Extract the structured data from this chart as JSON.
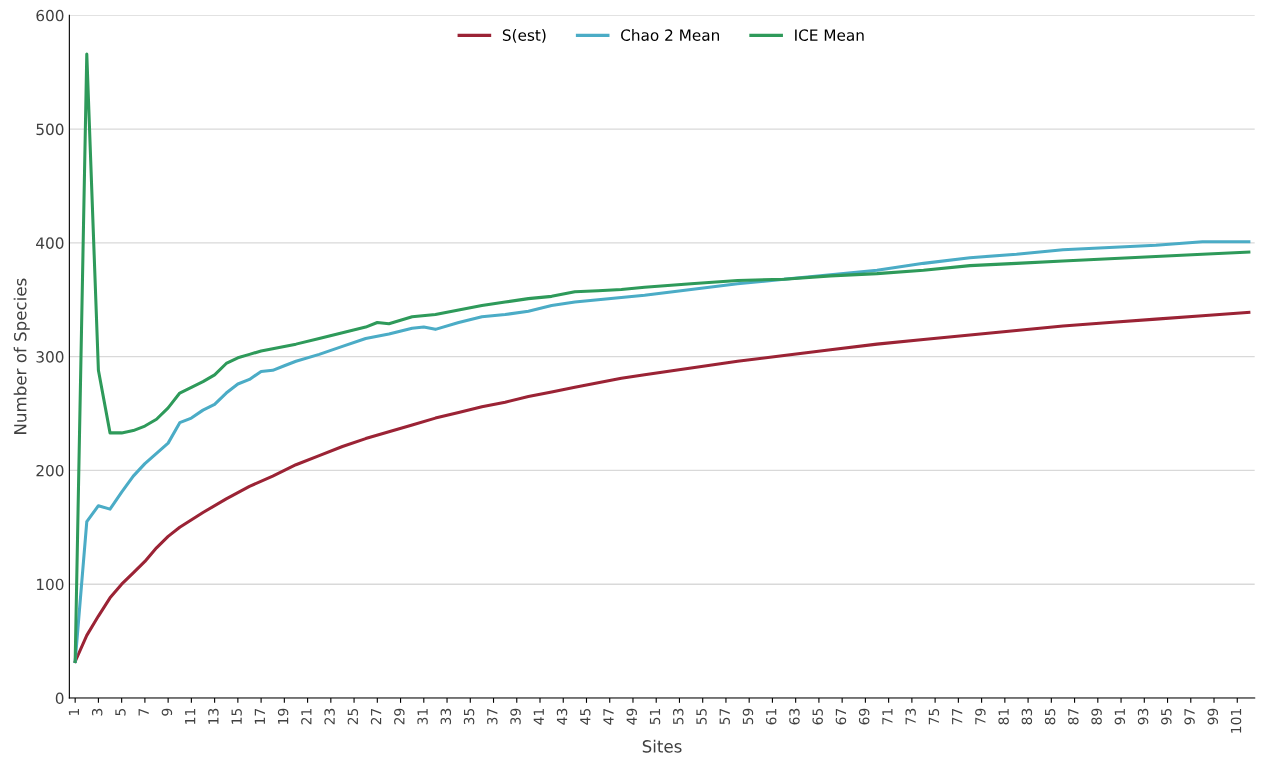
{
  "chart_data": {
    "type": "line",
    "xlabel": "Sites",
    "ylabel": "Number of Species",
    "xlim": [
      0.5,
      102.5
    ],
    "xticks": [
      1,
      3,
      5,
      7,
      9,
      11,
      13,
      15,
      17,
      19,
      21,
      23,
      25,
      27,
      29,
      31,
      33,
      35,
      37,
      39,
      41,
      43,
      45,
      47,
      49,
      51,
      53,
      55,
      57,
      59,
      61,
      63,
      65,
      67,
      69,
      71,
      73,
      75,
      77,
      79,
      81,
      83,
      85,
      87,
      89,
      91,
      93,
      95,
      97,
      99,
      101
    ],
    "ylim": [
      0,
      600
    ],
    "yticks": [
      0,
      100,
      200,
      300,
      400,
      500,
      600
    ],
    "grid": "y",
    "legend": "top",
    "marker": "none",
    "line_style": "solid",
    "series": [
      {
        "name": "S(est)",
        "color": "#9b2335",
        "x": [
          1,
          2,
          3,
          4,
          5,
          6,
          7,
          8,
          9,
          10,
          12,
          14,
          16,
          18,
          20,
          22,
          24,
          26,
          28,
          30,
          32,
          34,
          36,
          38,
          40,
          42,
          44,
          46,
          48,
          50,
          54,
          58,
          62,
          66,
          70,
          74,
          78,
          82,
          86,
          90,
          94,
          98,
          102
        ],
        "values": [
          32,
          55,
          72,
          88,
          100,
          110,
          120,
          132,
          142,
          150,
          163,
          175,
          186,
          195,
          205,
          213,
          221,
          228,
          234,
          240,
          246,
          251,
          256,
          260,
          265,
          269,
          273,
          277,
          281,
          284,
          290,
          296,
          301,
          306,
          311,
          315,
          319,
          323,
          327,
          330,
          333,
          336,
          339
        ]
      },
      {
        "name": "Chao 2 Mean",
        "color": "#4bacc6",
        "x": [
          1,
          2,
          3,
          4,
          5,
          6,
          7,
          8,
          9,
          10,
          11,
          12,
          13,
          14,
          15,
          16,
          17,
          18,
          19,
          20,
          22,
          24,
          26,
          28,
          30,
          31,
          32,
          34,
          36,
          38,
          40,
          42,
          44,
          46,
          48,
          50,
          54,
          58,
          62,
          66,
          70,
          74,
          78,
          82,
          86,
          90,
          94,
          98,
          102
        ],
        "values": [
          32,
          155,
          169,
          166,
          181,
          195,
          206,
          215,
          224,
          242,
          246,
          253,
          258,
          268,
          276,
          280,
          287,
          288,
          292,
          296,
          302,
          309,
          316,
          320,
          325,
          326,
          324,
          330,
          335,
          337,
          340,
          345,
          348,
          350,
          352,
          354,
          359,
          364,
          368,
          372,
          376,
          382,
          387,
          390,
          394,
          396,
          398,
          401,
          401
        ]
      },
      {
        "name": "ICE Mean",
        "color": "#2e9a5a",
        "x": [
          1,
          2,
          3,
          4,
          5,
          6,
          7,
          8,
          9,
          10,
          11,
          12,
          13,
          14,
          15,
          16,
          17,
          18,
          20,
          22,
          24,
          26,
          27,
          28,
          30,
          32,
          34,
          36,
          38,
          40,
          42,
          44,
          46,
          48,
          50,
          54,
          58,
          62,
          66,
          70,
          74,
          78,
          82,
          86,
          90,
          94,
          98,
          102
        ],
        "values": [
          32,
          566,
          288,
          233,
          233,
          235,
          239,
          245,
          255,
          268,
          273,
          278,
          284,
          294,
          299,
          302,
          305,
          307,
          311,
          316,
          321,
          326,
          330,
          329,
          335,
          337,
          341,
          345,
          348,
          351,
          353,
          357,
          358,
          359,
          361,
          364,
          367,
          368,
          371,
          373,
          376,
          380,
          382,
          384,
          386,
          388,
          390,
          392
        ]
      }
    ]
  }
}
